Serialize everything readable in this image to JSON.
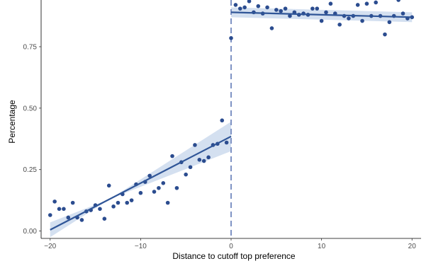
{
  "chart_data": {
    "type": "scatter",
    "title": "",
    "xlabel": "Distance to cutoff top preference",
    "ylabel": "Percentage",
    "xlim": [
      -21,
      21
    ],
    "ylim": [
      -0.03,
      0.94
    ],
    "xticks": [
      -20,
      -10,
      0,
      10,
      20
    ],
    "xtick_labels": [
      "−20",
      "−10",
      "0",
      "10",
      "20"
    ],
    "yticks": [
      0.0,
      0.25,
      0.5,
      0.75
    ],
    "ytick_labels": [
      "0.00",
      "0.25",
      "0.50",
      "0.75"
    ],
    "grid": false,
    "legend": "none",
    "cutoff_line": {
      "x": 0,
      "style": "dashed",
      "color": "#7f93c4"
    },
    "points_color": "#2b4c8f",
    "fit_color": "#2f5597",
    "band_color": "#c9d8ec",
    "points_left": [
      {
        "x": -20,
        "y": 0.065
      },
      {
        "x": -19.5,
        "y": 0.12
      },
      {
        "x": -19,
        "y": 0.09
      },
      {
        "x": -18.5,
        "y": 0.09
      },
      {
        "x": -18,
        "y": 0.055
      },
      {
        "x": -17.5,
        "y": 0.115
      },
      {
        "x": -17,
        "y": 0.055
      },
      {
        "x": -16.5,
        "y": 0.045
      },
      {
        "x": -16,
        "y": 0.08
      },
      {
        "x": -15.5,
        "y": 0.085
      },
      {
        "x": -15,
        "y": 0.105
      },
      {
        "x": -14.5,
        "y": 0.09
      },
      {
        "x": -14,
        "y": 0.05
      },
      {
        "x": -13.5,
        "y": 0.185
      },
      {
        "x": -13,
        "y": 0.1
      },
      {
        "x": -12.5,
        "y": 0.115
      },
      {
        "x": -12,
        "y": 0.15
      },
      {
        "x": -11.5,
        "y": 0.115
      },
      {
        "x": -11,
        "y": 0.125
      },
      {
        "x": -10.5,
        "y": 0.19
      },
      {
        "x": -10,
        "y": 0.155
      },
      {
        "x": -9.5,
        "y": 0.2
      },
      {
        "x": -9,
        "y": 0.225
      },
      {
        "x": -8.5,
        "y": 0.16
      },
      {
        "x": -8,
        "y": 0.175
      },
      {
        "x": -7.5,
        "y": 0.195
      },
      {
        "x": -7,
        "y": 0.115
      },
      {
        "x": -6.5,
        "y": 0.305
      },
      {
        "x": -6,
        "y": 0.175
      },
      {
        "x": -5.5,
        "y": 0.28
      },
      {
        "x": -5,
        "y": 0.23
      },
      {
        "x": -4.5,
        "y": 0.26
      },
      {
        "x": -4,
        "y": 0.35
      },
      {
        "x": -3.5,
        "y": 0.29
      },
      {
        "x": -3,
        "y": 0.285
      },
      {
        "x": -2.5,
        "y": 0.3
      },
      {
        "x": -2,
        "y": 0.35
      },
      {
        "x": -1.5,
        "y": 0.355
      },
      {
        "x": -1,
        "y": 0.45
      },
      {
        "x": -0.5,
        "y": 0.36
      },
      {
        "x": 0,
        "y": 0.785
      }
    ],
    "points_right": [
      {
        "x": 0.5,
        "y": 0.92
      },
      {
        "x": 1,
        "y": 0.905
      },
      {
        "x": 1.5,
        "y": 0.91
      },
      {
        "x": 2,
        "y": 0.935
      },
      {
        "x": 2.5,
        "y": 0.89
      },
      {
        "x": 3,
        "y": 0.915
      },
      {
        "x": 3.5,
        "y": 0.885
      },
      {
        "x": 4,
        "y": 0.91
      },
      {
        "x": 4.5,
        "y": 0.825
      },
      {
        "x": 5,
        "y": 0.9
      },
      {
        "x": 5.5,
        "y": 0.895
      },
      {
        "x": 6,
        "y": 0.905
      },
      {
        "x": 6.5,
        "y": 0.875
      },
      {
        "x": 7,
        "y": 0.89
      },
      {
        "x": 7.5,
        "y": 0.88
      },
      {
        "x": 8,
        "y": 0.885
      },
      {
        "x": 8.5,
        "y": 0.88
      },
      {
        "x": 9,
        "y": 0.905
      },
      {
        "x": 9.5,
        "y": 0.905
      },
      {
        "x": 10,
        "y": 0.855
      },
      {
        "x": 10.5,
        "y": 0.89
      },
      {
        "x": 11,
        "y": 0.925
      },
      {
        "x": 11.5,
        "y": 0.885
      },
      {
        "x": 12,
        "y": 0.84
      },
      {
        "x": 12.5,
        "y": 0.875
      },
      {
        "x": 13,
        "y": 0.865
      },
      {
        "x": 13.5,
        "y": 0.875
      },
      {
        "x": 14,
        "y": 0.92
      },
      {
        "x": 14.5,
        "y": 0.855
      },
      {
        "x": 15,
        "y": 0.925
      },
      {
        "x": 15.5,
        "y": 0.875
      },
      {
        "x": 16,
        "y": 0.93
      },
      {
        "x": 16.5,
        "y": 0.875
      },
      {
        "x": 17,
        "y": 0.8
      },
      {
        "x": 17.5,
        "y": 0.85
      },
      {
        "x": 18,
        "y": 0.875
      },
      {
        "x": 18.5,
        "y": 0.94
      },
      {
        "x": 19,
        "y": 0.885
      },
      {
        "x": 19.5,
        "y": 0.865
      },
      {
        "x": 20,
        "y": 0.87
      }
    ],
    "fit_left": {
      "x": [
        -20,
        0
      ],
      "y": [
        0.005,
        0.385
      ],
      "ci": [
        [
          0.035,
          -0.025
        ],
        [
          0.325,
          0.445
        ]
      ]
    },
    "fit_right": {
      "x": [
        0,
        20
      ],
      "y": [
        0.89,
        0.87
      ],
      "ci": [
        [
          0.87,
          0.91
        ],
        [
          0.85,
          0.89
        ]
      ]
    }
  }
}
